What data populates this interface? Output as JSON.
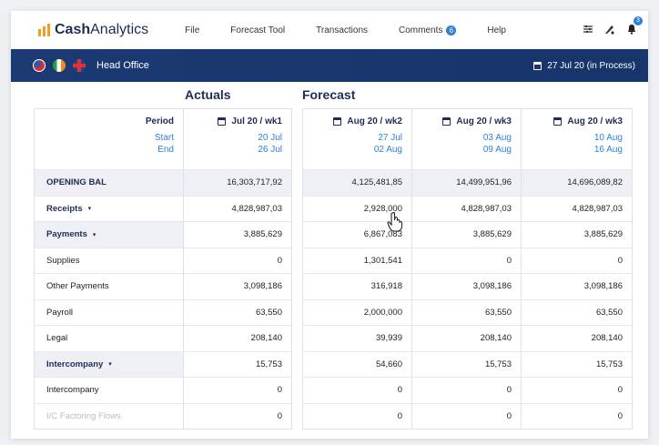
{
  "app": {
    "logo_bold": "Cash",
    "logo_rest": "Analytics"
  },
  "menu": {
    "file": "File",
    "forecast_tool": "Forecast Tool",
    "transactions": "Transactions",
    "comments": "Comments",
    "comments_badge": "6",
    "help": "Help",
    "bell_badge": "3"
  },
  "bluebar": {
    "office": "Head Office",
    "status_date": "27 Jul 20 (in Process)"
  },
  "sections": {
    "actuals": "Actuals",
    "forecast": "Forecast"
  },
  "table": {
    "period_header": {
      "title": "Period",
      "start": "Start",
      "end": "End"
    },
    "columns": [
      {
        "title": "Jul 20 / wk1",
        "start": "20 Jul",
        "end": "26 Jul"
      },
      {
        "title": "Aug 20 / wk2",
        "start": "27 Jul",
        "end": "02 Aug"
      },
      {
        "title": "Aug 20 / wk3",
        "start": "03 Aug",
        "end": "09 Aug"
      },
      {
        "title": "Aug 20 / wk3",
        "start": "10 Aug",
        "end": "16 Aug"
      }
    ],
    "rows": [
      {
        "label": "OPENING BAL",
        "values": [
          "16,303,717,92",
          "4,125,481,85",
          "14,499,951,96",
          "14,696,089,82"
        ]
      },
      {
        "label": "Receipts",
        "values": [
          "4,828,987,03",
          "2,928,000",
          "4,828,987,03",
          "4,828,987,03"
        ]
      },
      {
        "label": "Payments",
        "values": [
          "3,885,629",
          "6,867,083",
          "3,885,629",
          "3,885,629"
        ]
      },
      {
        "label": "Supplies",
        "values": [
          "0",
          "1,301,541",
          "0",
          "0"
        ]
      },
      {
        "label": "Other Payments",
        "values": [
          "3,098,186",
          "316,918",
          "3,098,186",
          "3,098,186"
        ]
      },
      {
        "label": "Payroll",
        "values": [
          "63,550",
          "2,000,000",
          "63,550",
          "63,550"
        ]
      },
      {
        "label": "Legal",
        "values": [
          "208,140",
          "39,939",
          "208,140",
          "208,140"
        ]
      },
      {
        "label": "Intercompany",
        "values": [
          "15,753",
          "54,660",
          "15,753",
          "15,753"
        ]
      },
      {
        "label": "Intercompany",
        "values": [
          "0",
          "0",
          "0",
          "0"
        ]
      },
      {
        "label": "I/C Factoring Flows",
        "values": [
          "0",
          "0",
          "0",
          "0"
        ]
      }
    ]
  },
  "icons": {
    "caret": "▾"
  }
}
